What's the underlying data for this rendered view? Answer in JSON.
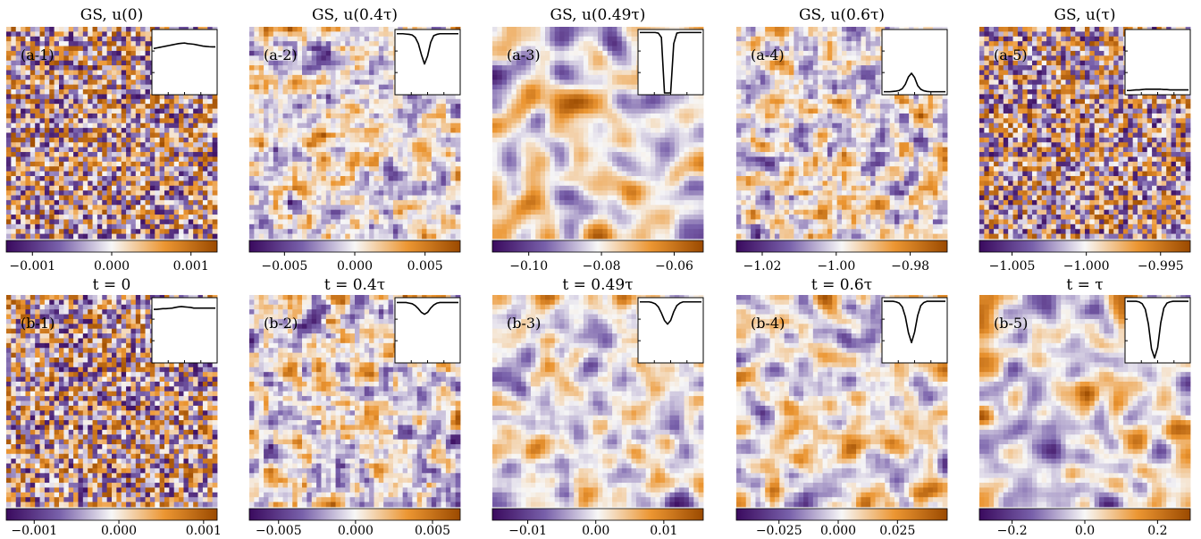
{
  "colormap": {
    "low": "#3a0a5e",
    "mid": "#f7f7f7",
    "high": "#9b4a00",
    "name": "PuOr_r"
  },
  "chart_data": [
    {
      "type": "heatmap",
      "id": "a-1",
      "title": "GS, u(0)",
      "label": "(a-1)",
      "colorbar_ticks": [
        {
          "v": -0.001,
          "t": "−0.001"
        },
        {
          "v": 0.0,
          "t": "0.000"
        },
        {
          "v": 0.001,
          "t": "0.001"
        }
      ],
      "colorbar_range": [
        -0.00133,
        0.00133
      ],
      "inset": {
        "description_values": [
          0.72,
          0.73,
          0.74,
          0.75,
          0.76,
          0.77,
          0.78,
          0.79,
          0.8,
          0.805,
          0.81,
          0.8,
          0.795,
          0.79,
          0.78,
          0.77,
          0.76,
          0.755,
          0.75,
          0.748,
          0.747
        ],
        "ylim": [
          0,
          1
        ]
      }
    },
    {
      "type": "heatmap",
      "id": "a-2",
      "title": "GS, u(0.4τ)",
      "label": "(a-2)",
      "colorbar_ticks": [
        {
          "v": -0.005,
          "t": "−0.005"
        },
        {
          "v": 0.0,
          "t": "0.000"
        },
        {
          "v": 0.005,
          "t": "0.005"
        }
      ],
      "colorbar_range": [
        -0.0075,
        0.0075
      ],
      "inset": {
        "description_values": [
          0.96,
          0.96,
          0.96,
          0.955,
          0.95,
          0.94,
          0.9,
          0.8,
          0.62,
          0.47,
          0.6,
          0.82,
          0.93,
          0.95,
          0.96,
          0.96,
          0.96,
          0.96,
          0.96,
          0.96,
          0.96
        ],
        "ylim": [
          0,
          1
        ]
      }
    },
    {
      "type": "heatmap",
      "id": "a-3",
      "title": "GS, u(0.49τ)",
      "label": "(a-3)",
      "colorbar_ticks": [
        {
          "v": -0.1,
          "t": "−0.10"
        },
        {
          "v": -0.08,
          "t": "−0.08"
        },
        {
          "v": -0.06,
          "t": "−0.06"
        }
      ],
      "colorbar_range": [
        -0.11,
        -0.052
      ],
      "inset": {
        "description_values": [
          0.98,
          0.98,
          0.98,
          0.98,
          0.98,
          0.98,
          0.97,
          0.9,
          0.0,
          0.0,
          0.0,
          0.8,
          0.97,
          0.98,
          0.98,
          0.98,
          0.98,
          0.98,
          0.98,
          0.98,
          0.98
        ],
        "ylim": [
          0,
          1
        ]
      }
    },
    {
      "type": "heatmap",
      "id": "a-4",
      "title": "GS, u(0.6τ)",
      "label": "(a-4)",
      "colorbar_ticks": [
        {
          "v": -1.02,
          "t": "−1.02"
        },
        {
          "v": -1.0,
          "t": "−1.00"
        },
        {
          "v": -0.98,
          "t": "−0.98"
        }
      ],
      "colorbar_range": [
        -1.027,
        -0.97
      ],
      "inset": {
        "description_values": [
          0.02,
          0.02,
          0.02,
          0.025,
          0.03,
          0.04,
          0.07,
          0.14,
          0.26,
          0.32,
          0.25,
          0.12,
          0.06,
          0.035,
          0.025,
          0.02,
          0.02,
          0.02,
          0.02,
          0.02,
          0.02
        ],
        "ylim": [
          0,
          1
        ]
      }
    },
    {
      "type": "heatmap",
      "id": "a-5",
      "title": "GS, u(τ)",
      "label": "(a-5)",
      "colorbar_ticks": [
        {
          "v": -1.005,
          "t": "−1.005"
        },
        {
          "v": -1.0,
          "t": "−1.000"
        },
        {
          "v": -0.995,
          "t": "−0.995"
        }
      ],
      "colorbar_range": [
        -1.0072,
        -0.993
      ],
      "inset": {
        "description_values": [
          0.04,
          0.04,
          0.045,
          0.05,
          0.05,
          0.055,
          0.06,
          0.06,
          0.06,
          0.06,
          0.06,
          0.06,
          0.055,
          0.055,
          0.05,
          0.05,
          0.05,
          0.05,
          0.05,
          0.05,
          0.05
        ],
        "ylim": [
          0,
          1
        ]
      }
    },
    {
      "type": "heatmap",
      "id": "b-1",
      "title": "t = 0",
      "label": "(b-1)",
      "colorbar_ticks": [
        {
          "v": -0.001,
          "t": "−0.001"
        },
        {
          "v": 0.0,
          "t": "0.000"
        },
        {
          "v": 0.001,
          "t": "0.001"
        }
      ],
      "colorbar_range": [
        -0.00133,
        0.00116
      ],
      "inset": {
        "description_values": [
          0.84,
          0.84,
          0.845,
          0.85,
          0.85,
          0.855,
          0.86,
          0.87,
          0.88,
          0.885,
          0.88,
          0.875,
          0.87,
          0.86,
          0.86,
          0.86,
          0.86,
          0.86,
          0.86,
          0.86,
          0.86
        ],
        "ylim": [
          0,
          1
        ]
      }
    },
    {
      "type": "heatmap",
      "id": "b-2",
      "title": "t = 0.4τ",
      "label": "(b-2)",
      "colorbar_ticks": [
        {
          "v": -0.005,
          "t": "−0.005"
        },
        {
          "v": 0.0,
          "t": "0.000"
        },
        {
          "v": 0.005,
          "t": "0.005"
        }
      ],
      "colorbar_range": [
        -0.0069,
        0.0068
      ],
      "inset": {
        "description_values": [
          0.95,
          0.95,
          0.95,
          0.95,
          0.94,
          0.93,
          0.9,
          0.85,
          0.79,
          0.76,
          0.79,
          0.86,
          0.91,
          0.94,
          0.95,
          0.95,
          0.95,
          0.95,
          0.95,
          0.95,
          0.95
        ],
        "ylim": [
          0,
          1
        ]
      }
    },
    {
      "type": "heatmap",
      "id": "b-3",
      "title": "t = 0.49τ",
      "label": "(b-3)",
      "colorbar_ticks": [
        {
          "v": -0.01,
          "t": "−0.01"
        },
        {
          "v": 0.0,
          "t": "0.00"
        },
        {
          "v": 0.01,
          "t": "0.01"
        }
      ],
      "colorbar_range": [
        -0.0152,
        0.0158
      ],
      "inset": {
        "description_values": [
          0.96,
          0.96,
          0.96,
          0.96,
          0.95,
          0.93,
          0.88,
          0.78,
          0.66,
          0.6,
          0.66,
          0.8,
          0.9,
          0.94,
          0.96,
          0.96,
          0.96,
          0.96,
          0.96,
          0.96,
          0.96
        ],
        "ylim": [
          0,
          1
        ]
      }
    },
    {
      "type": "heatmap",
      "id": "b-4",
      "title": "t = 0.6τ",
      "label": "(b-4)",
      "colorbar_ticks": [
        {
          "v": -0.025,
          "t": "−0.025"
        },
        {
          "v": 0.0,
          "t": "0.000"
        },
        {
          "v": 0.025,
          "t": "0.025"
        }
      ],
      "colorbar_range": [
        -0.043,
        0.046
      ],
      "inset": {
        "description_values": [
          0.97,
          0.97,
          0.97,
          0.97,
          0.96,
          0.94,
          0.88,
          0.72,
          0.46,
          0.3,
          0.47,
          0.74,
          0.9,
          0.95,
          0.97,
          0.97,
          0.97,
          0.97,
          0.97,
          0.97,
          0.97
        ],
        "ylim": [
          0,
          1
        ]
      }
    },
    {
      "type": "heatmap",
      "id": "b-5",
      "title": "t = τ",
      "label": "(b-5)",
      "colorbar_ticks": [
        {
          "v": -0.2,
          "t": "−0.2"
        },
        {
          "v": 0.0,
          "t": "0.0"
        },
        {
          "v": 0.2,
          "t": "0.2"
        }
      ],
      "colorbar_range": [
        -0.29,
        0.29
      ],
      "inset": {
        "description_values": [
          0.97,
          0.97,
          0.97,
          0.97,
          0.96,
          0.93,
          0.84,
          0.6,
          0.2,
          0.05,
          0.22,
          0.62,
          0.86,
          0.94,
          0.96,
          0.97,
          0.97,
          0.97,
          0.97,
          0.97,
          0.97
        ],
        "ylim": [
          0,
          1
        ]
      }
    }
  ]
}
